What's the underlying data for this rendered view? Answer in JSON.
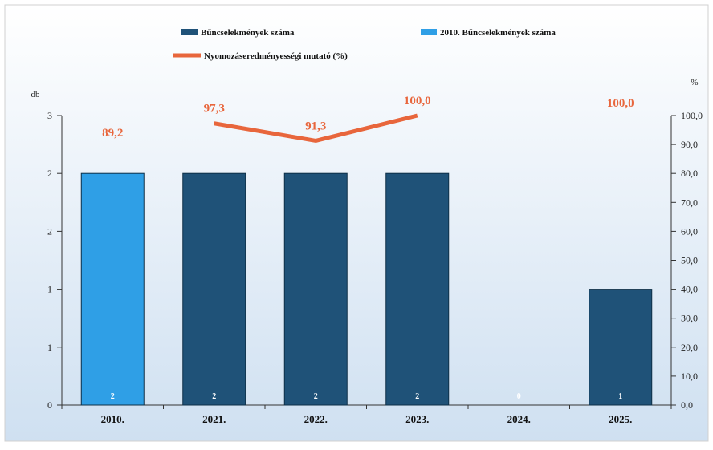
{
  "chart_data": {
    "type": "bar",
    "categories": [
      "2010.",
      "2021.",
      "2022.",
      "2023.",
      "2024.",
      "2025."
    ],
    "series": [
      {
        "name": "Bűncselekmények száma",
        "kind": "bar",
        "axis": "left",
        "color": "#1f5278",
        "values": [
          null,
          2,
          2,
          2,
          0,
          1
        ],
        "bar_labels": [
          null,
          "2",
          "2",
          "2",
          "0",
          "1"
        ]
      },
      {
        "name": "2010. Bűncselekmények száma",
        "kind": "bar",
        "axis": "left",
        "color": "#2f9fe6",
        "values": [
          2,
          null,
          null,
          null,
          null,
          null
        ],
        "bar_labels": [
          "2",
          null,
          null,
          null,
          null,
          null
        ]
      },
      {
        "name": "Nyomozáseredményességi mutató (%)",
        "kind": "line",
        "axis": "right",
        "color": "#e8663c",
        "values": [
          89.2,
          97.3,
          91.3,
          100.0,
          null,
          100.0
        ],
        "data_labels": [
          "89,2",
          "97,3",
          "91,3",
          "100,0",
          null,
          "100,0"
        ],
        "line_segment": [
          1,
          3
        ]
      }
    ],
    "left_axis": {
      "label": "db",
      "range": [
        0,
        2.5
      ],
      "tick_values": [
        0,
        0.5,
        1,
        1.5,
        2,
        2.5
      ],
      "tick_labels": [
        "0",
        "1",
        "1",
        "2",
        "2",
        "3"
      ]
    },
    "right_axis": {
      "label": "%",
      "range": [
        0,
        100
      ],
      "tick_values": [
        0,
        10,
        20,
        30,
        40,
        50,
        60,
        70,
        80,
        90,
        100
      ],
      "tick_labels": [
        "0,0",
        "10,0",
        "20,0",
        "30,0",
        "40,0",
        "50,0",
        "60,0",
        "70,0",
        "80,0",
        "90,0",
        "100,0"
      ]
    },
    "legend_placement": "top",
    "grid": false
  },
  "colors": {
    "background_top": "#ffffff",
    "background_bottom": "#cfe0f1",
    "axis": "#333333"
  }
}
